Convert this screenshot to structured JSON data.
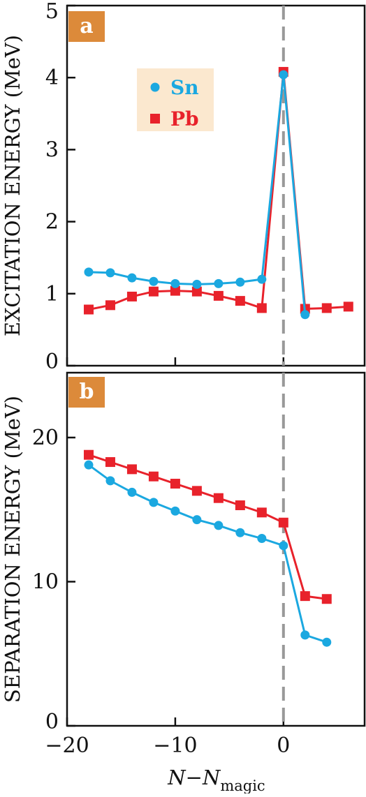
{
  "chart_data": [
    {
      "panel": "a",
      "type": "line",
      "ylabel": "EXCITATION ENERGY (MeV)",
      "ylim": [
        0,
        5
      ],
      "yticks": [
        0,
        1,
        2,
        3,
        4,
        5
      ],
      "xlim": [
        -20,
        7.5
      ],
      "xticks": [
        -20,
        -10,
        0
      ],
      "legend": "top-left",
      "series": [
        {
          "name": "Sn",
          "color": "#1BA8E0",
          "marker": "circle",
          "x": [
            -18,
            -16,
            -14,
            -12,
            -10,
            -8,
            -6,
            -4,
            -2,
            0,
            2
          ],
          "y": [
            1.3,
            1.29,
            1.22,
            1.17,
            1.14,
            1.13,
            1.14,
            1.16,
            1.2,
            4.04,
            0.71
          ]
        },
        {
          "name": "Pb",
          "color": "#E8222B",
          "marker": "square",
          "x": [
            -18,
            -16,
            -14,
            -12,
            -10,
            -8,
            -6,
            -4,
            -2,
            0,
            2,
            4,
            6
          ],
          "y": [
            0.78,
            0.84,
            0.96,
            1.03,
            1.04,
            1.03,
            0.97,
            0.9,
            0.8,
            4.08,
            0.79,
            0.8,
            0.82
          ]
        }
      ]
    },
    {
      "panel": "b",
      "type": "line",
      "ylabel": "SEPARATION ENERGY (MeV)",
      "ylim": [
        0,
        24.5
      ],
      "yticks": [
        0,
        10,
        20
      ],
      "xlim": [
        -20,
        7.5
      ],
      "xticks": [
        -20,
        -10,
        0
      ],
      "xlabel_main": "N",
      "xlabel_minus": "−",
      "xlabel_sub_base": "N",
      "xlabel_sub": "magic",
      "series": [
        {
          "name": "Sn",
          "color": "#1BA8E0",
          "marker": "circle",
          "x": [
            -18,
            -16,
            -14,
            -12,
            -10,
            -8,
            -6,
            -4,
            -2,
            0,
            2,
            4
          ],
          "y": [
            18.1,
            17.0,
            16.2,
            15.5,
            14.9,
            14.3,
            13.9,
            13.4,
            13.0,
            12.5,
            6.3,
            5.8
          ]
        },
        {
          "name": "Pb",
          "color": "#E8222B",
          "marker": "square",
          "x": [
            -18,
            -16,
            -14,
            -12,
            -10,
            -8,
            -6,
            -4,
            -2,
            0,
            2,
            4
          ],
          "y": [
            18.8,
            18.3,
            17.8,
            17.3,
            16.8,
            16.3,
            15.8,
            15.3,
            14.8,
            14.1,
            9.0,
            8.8
          ]
        }
      ]
    }
  ],
  "colors": {
    "badge": "#DC8A3A",
    "legend_bg": "#FBE8CF",
    "dashed_line": "#999999",
    "axis": "#111111"
  }
}
